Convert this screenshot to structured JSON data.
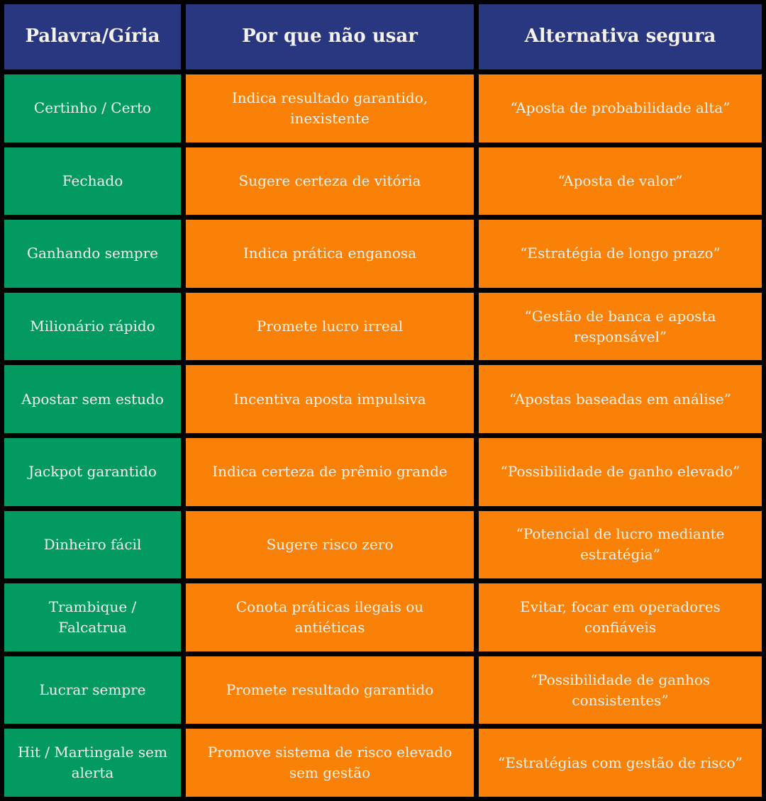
{
  "chart_data": {
    "type": "table",
    "columns": [
      "Palavra/Gíria",
      "Por que não usar",
      "Alternativa segura"
    ],
    "rows": [
      {
        "term": "Certinho / Certo",
        "reason": "Indica resultado garantido, inexistente",
        "alternative": "“Aposta de probabilidade alta”"
      },
      {
        "term": "Fechado",
        "reason": "Sugere certeza de vitória",
        "alternative": "“Aposta de valor”"
      },
      {
        "term": "Ganhando sempre",
        "reason": "Indica prática enganosa",
        "alternative": "“Estratégia de longo prazo”"
      },
      {
        "term": "Milionário rápido",
        "reason": "Promete lucro irreal",
        "alternative": "“Gestão de banca e aposta responsável”"
      },
      {
        "term": "Apostar sem estudo",
        "reason": "Incentiva aposta impulsiva",
        "alternative": "“Apostas baseadas em análise”"
      },
      {
        "term": "Jackpot garantido",
        "reason": "Indica certeza de prêmio grande",
        "alternative": "“Possibilidade de ganho elevado”"
      },
      {
        "term": "Dinheiro fácil",
        "reason": "Sugere risco zero",
        "alternative": "“Potencial de lucro mediante estratégia”"
      },
      {
        "term": "Trambique / Falcatrua",
        "reason": "Conota práticas ilegais ou antiéticas",
        "alternative": "Evitar, focar em operadores confiáveis"
      },
      {
        "term": "Lucrar sempre",
        "reason": "Promete resultado garantido",
        "alternative": "“Possibilidade de ganhos consistentes”"
      },
      {
        "term": "Hit / Martingale sem alerta",
        "reason": "Promove sistema de risco elevado sem gestão",
        "alternative": "“Estratégias com gestão de risco”"
      }
    ]
  },
  "colors": {
    "header_bg": "#293680",
    "term_bg": "#029A61",
    "cell_bg": "#FA8108",
    "border": "#000000",
    "text": "#F5F2EC"
  }
}
